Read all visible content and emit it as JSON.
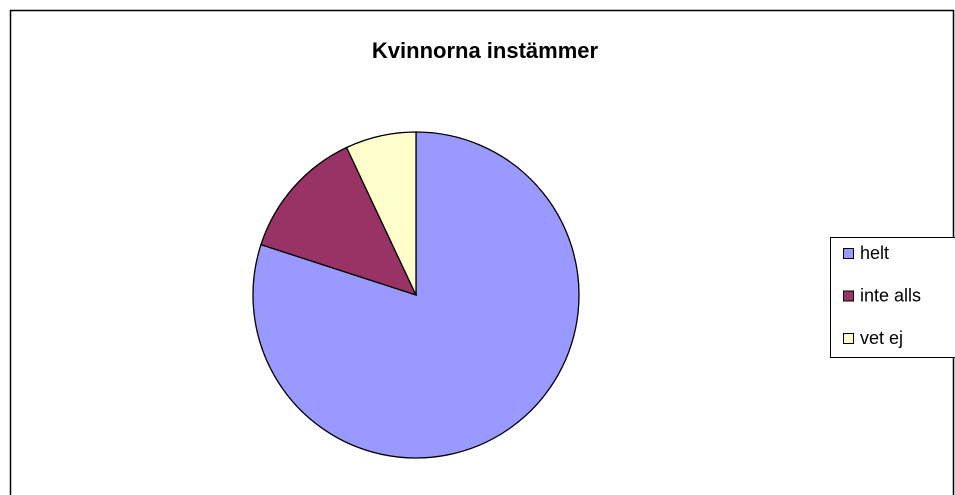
{
  "chart_data": {
    "type": "pie",
    "title": "Kvinnorna instämmer",
    "categories": [
      "helt",
      "inte alls",
      "vet ej"
    ],
    "values": [
      80,
      13,
      7
    ],
    "colors": [
      "#9999ff",
      "#993366",
      "#ffffcc"
    ],
    "legend": "right"
  }
}
